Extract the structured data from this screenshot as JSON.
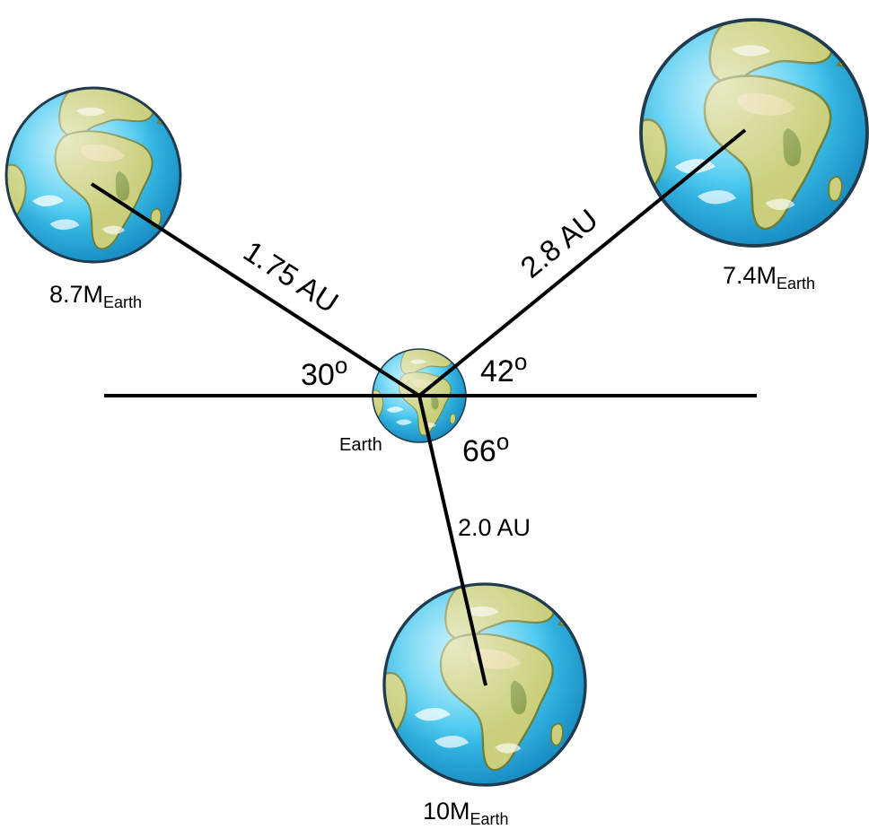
{
  "colors": {
    "ocean": "#3fc6ee",
    "ocean_dark": "#1f9fd2",
    "land": "#c9cf7a",
    "land_dark": "#8fa24f",
    "desert": "#e3d79a",
    "line": "#000000",
    "background": "#ffffff"
  },
  "icons": {
    "planet": "globe-icon"
  },
  "planets": {
    "earth": {
      "name": "Earth"
    },
    "left": {
      "mass_value": "8.7M",
      "mass_unit": "Earth"
    },
    "right": {
      "mass_value": "7.4M",
      "mass_unit": "Earth"
    },
    "bottom": {
      "mass_value": "10M",
      "mass_unit": "Earth"
    }
  },
  "distances": {
    "left": "1.75 AU",
    "right": "2.8 AU",
    "bottom": "2.0 AU"
  },
  "angles": {
    "left": {
      "value": "30",
      "unit": "o"
    },
    "right": {
      "value": "42",
      "unit": "o"
    },
    "bottom": {
      "value": "66",
      "unit": "o"
    }
  }
}
